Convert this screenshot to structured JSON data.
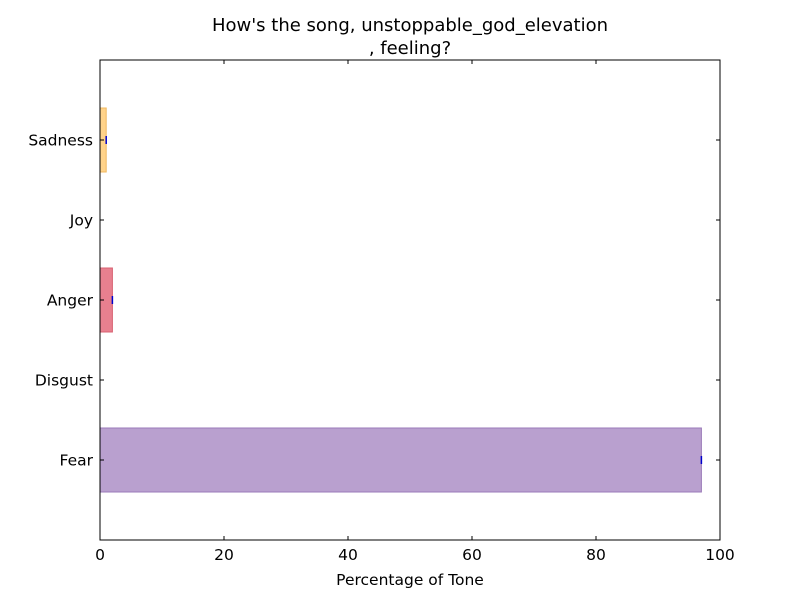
{
  "chart_data": {
    "type": "bar",
    "orientation": "horizontal",
    "title_lines": [
      "How's the song, unstoppable_god_elevation",
      ", feeling?"
    ],
    "xlabel": "Percentage of Tone",
    "ylabel": "",
    "xlim": [
      0,
      100
    ],
    "xticks": [
      "0",
      "20",
      "40",
      "60",
      "80",
      "100"
    ],
    "categories": [
      "Sadness",
      "Joy",
      "Anger",
      "Disgust",
      "Fear"
    ],
    "values": [
      1.0,
      0.0,
      2.0,
      0.0,
      97.0
    ],
    "colors": [
      "#FFD38A",
      "#F5D04A",
      "#E8808F",
      "#6FC97F",
      "#B9A0CF"
    ],
    "edge_colors": [
      "#F0B860",
      "#E0B820",
      "#D86070",
      "#40A050",
      "#9A7AB8"
    ],
    "grid": false,
    "legend": "none"
  }
}
